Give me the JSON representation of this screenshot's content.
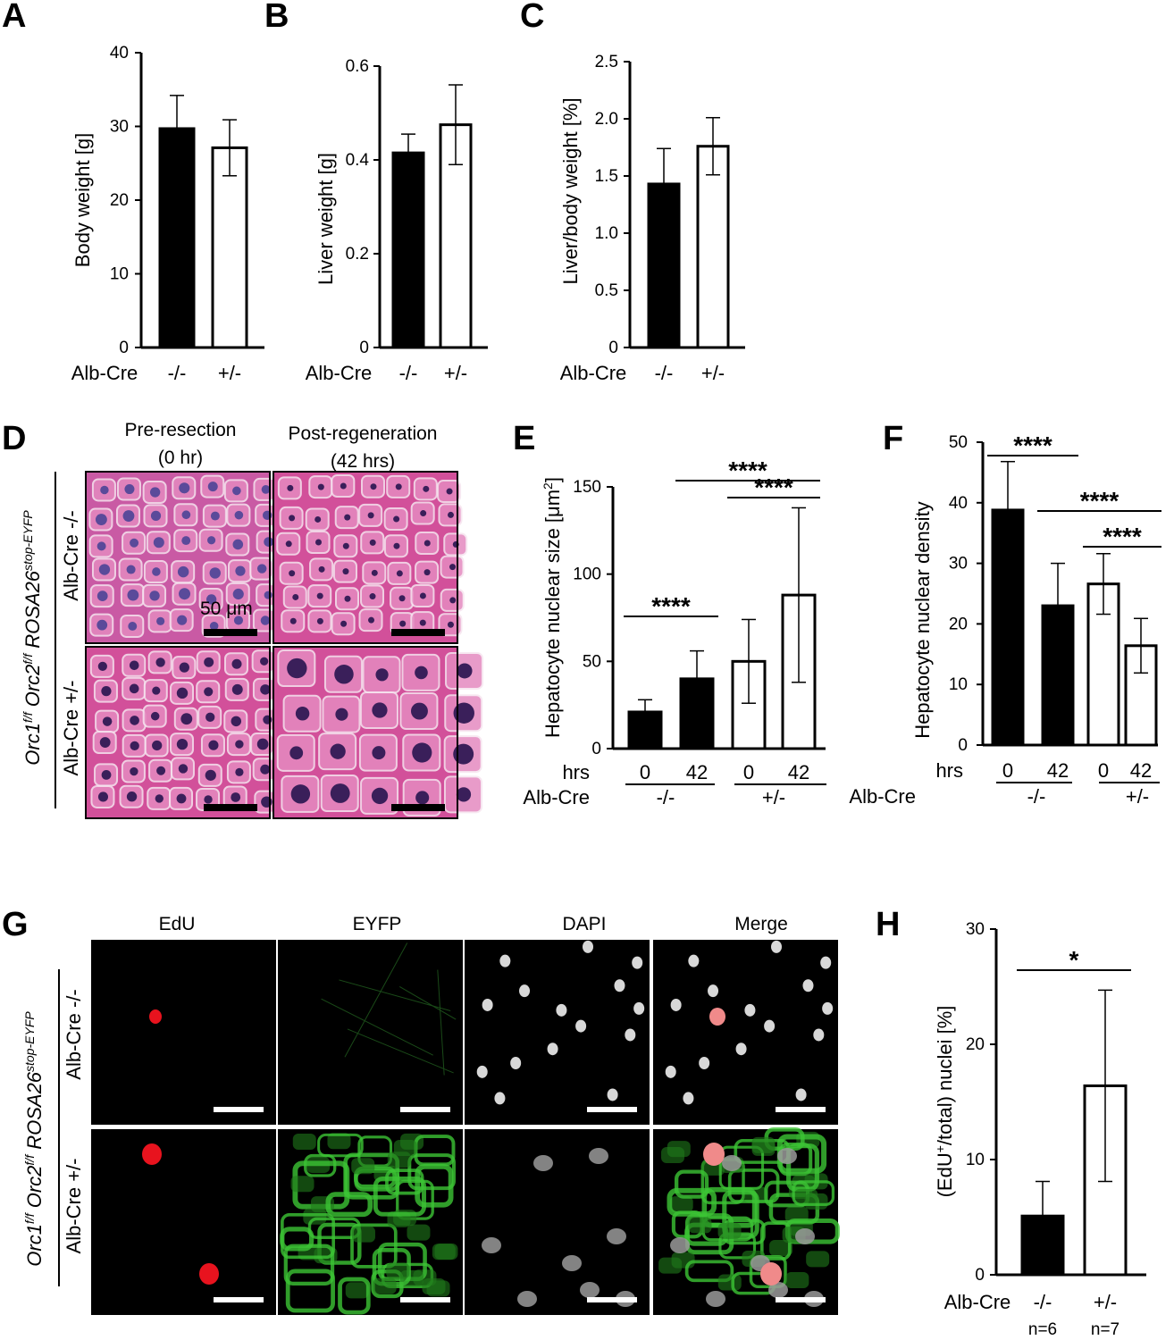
{
  "panels": {
    "A": "A",
    "B": "B",
    "C": "C",
    "D": "D",
    "E": "E",
    "F": "F",
    "G": "G",
    "H": "H"
  },
  "colors": {
    "black_bar": "#000000",
    "white_bar": "#ffffff",
    "he_pink": "#d9589e",
    "edu": "#e8131e",
    "eyfp": "#3cc434",
    "dapi": "#d8d8d8"
  },
  "chart_data": [
    {
      "id": "A",
      "type": "bar",
      "categories": [
        "-/-",
        "+/-"
      ],
      "values": [
        29.7,
        27.1
      ],
      "errors": [
        4.5,
        3.8
      ],
      "fills": [
        "black",
        "white"
      ],
      "ylabel": "Body weight [g]",
      "ylim": [
        0,
        40
      ],
      "yticks": [
        "0",
        "10",
        "20",
        "30",
        "40"
      ],
      "group_label": "Alb-Cre"
    },
    {
      "id": "B",
      "type": "bar",
      "categories": [
        "-/-",
        "+/-"
      ],
      "values": [
        0.415,
        0.475
      ],
      "errors": [
        0.04,
        0.085
      ],
      "fills": [
        "black",
        "white"
      ],
      "ylabel": "Liver weight [g]",
      "ylim": [
        0,
        0.6
      ],
      "yticks": [
        "0",
        "0.2",
        "0.4",
        "0.6"
      ],
      "group_label": "Alb-Cre"
    },
    {
      "id": "C",
      "type": "bar",
      "categories": [
        "-/-",
        "+/-"
      ],
      "values": [
        1.43,
        1.76
      ],
      "errors": [
        0.31,
        0.25
      ],
      "fills": [
        "black",
        "white"
      ],
      "ylabel": "Liver/body weight [%]",
      "ylim": [
        0,
        2.5
      ],
      "yticks": [
        "0",
        "0.5",
        "1.0",
        "1.5",
        "2.0",
        "2.5"
      ],
      "group_label": "Alb-Cre"
    },
    {
      "id": "E",
      "type": "bar",
      "categories": [
        "0",
        "42",
        "0",
        "42"
      ],
      "values": [
        21,
        40,
        50,
        88
      ],
      "errors": [
        7,
        16,
        24,
        50
      ],
      "fills": [
        "black",
        "black",
        "white",
        "white"
      ],
      "ylabel": "Hepatocyte nuclear size [μm",
      "ylabel_sup": "2",
      "ylabel_end": "]",
      "ylim": [
        0,
        150
      ],
      "yticks": [
        "0",
        "50",
        "100",
        "150"
      ],
      "row_label": "hrs",
      "group_label": "Alb-Cre",
      "groups": [
        "-/-",
        "+/-"
      ],
      "significance": [
        {
          "from": 0,
          "to": 1,
          "label": "****"
        },
        {
          "from": 1,
          "to": 3,
          "label": "****"
        },
        {
          "from": 2,
          "to": 3,
          "label": "****"
        }
      ]
    },
    {
      "id": "F",
      "type": "bar",
      "categories": [
        "0",
        "42",
        "0",
        "42"
      ],
      "values": [
        38.8,
        23,
        26.6,
        16.4
      ],
      "errors": [
        8,
        7,
        5,
        4.5
      ],
      "fills": [
        "black",
        "black",
        "white",
        "white"
      ],
      "ylabel": "Hepatocyte nuclear density",
      "ylim": [
        0,
        50
      ],
      "yticks": [
        "0",
        "10",
        "20",
        "30",
        "40",
        "50"
      ],
      "row_label": "hrs",
      "group_label": "Alb-Cre",
      "groups": [
        "-/-",
        "+/-"
      ],
      "significance": [
        {
          "from": 0,
          "to": 1,
          "label": "****"
        },
        {
          "from": 1,
          "to": 3,
          "label": "****"
        },
        {
          "from": 2,
          "to": 3,
          "label": "****"
        }
      ]
    },
    {
      "id": "H",
      "type": "bar",
      "categories": [
        "-/-",
        "+/-"
      ],
      "values": [
        5.1,
        16.4
      ],
      "errors": [
        3,
        8.3
      ],
      "fills": [
        "black",
        "white"
      ],
      "ylabel_pre": "(EdU",
      "ylabel_sup": "+",
      "ylabel_post": "/total) nuclei [%]",
      "ylim": [
        0,
        30
      ],
      "yticks": [
        "0",
        "10",
        "20",
        "30"
      ],
      "group_label": "Alb-Cre",
      "n_labels": [
        "n=6",
        "n=7"
      ],
      "significance": [
        {
          "from": 0,
          "to": 1,
          "label": "*"
        }
      ]
    }
  ],
  "panel_d": {
    "col_headers": [
      [
        "Pre-resection",
        "(0 hr)"
      ],
      [
        "Post-regeneration",
        "(42 hrs)"
      ]
    ],
    "row_labels": [
      "Alb-Cre -/-",
      "Alb-Cre +/-"
    ],
    "scale_label": "50 μm",
    "genotype_parts": [
      "Orc1",
      "f/f",
      "Orc2",
      "f/f",
      "ROSA26",
      "stop-EYFP"
    ]
  },
  "panel_g": {
    "col_headers": [
      "EdU",
      "EYFP",
      "DAPI",
      "Merge"
    ],
    "row_labels": [
      "Alb-Cre -/-",
      "Alb-Cre +/-"
    ],
    "genotype_parts": [
      "Orc1",
      "f/f",
      "Orc2",
      "f/f",
      "ROSA26",
      "stop-EYFP"
    ]
  }
}
